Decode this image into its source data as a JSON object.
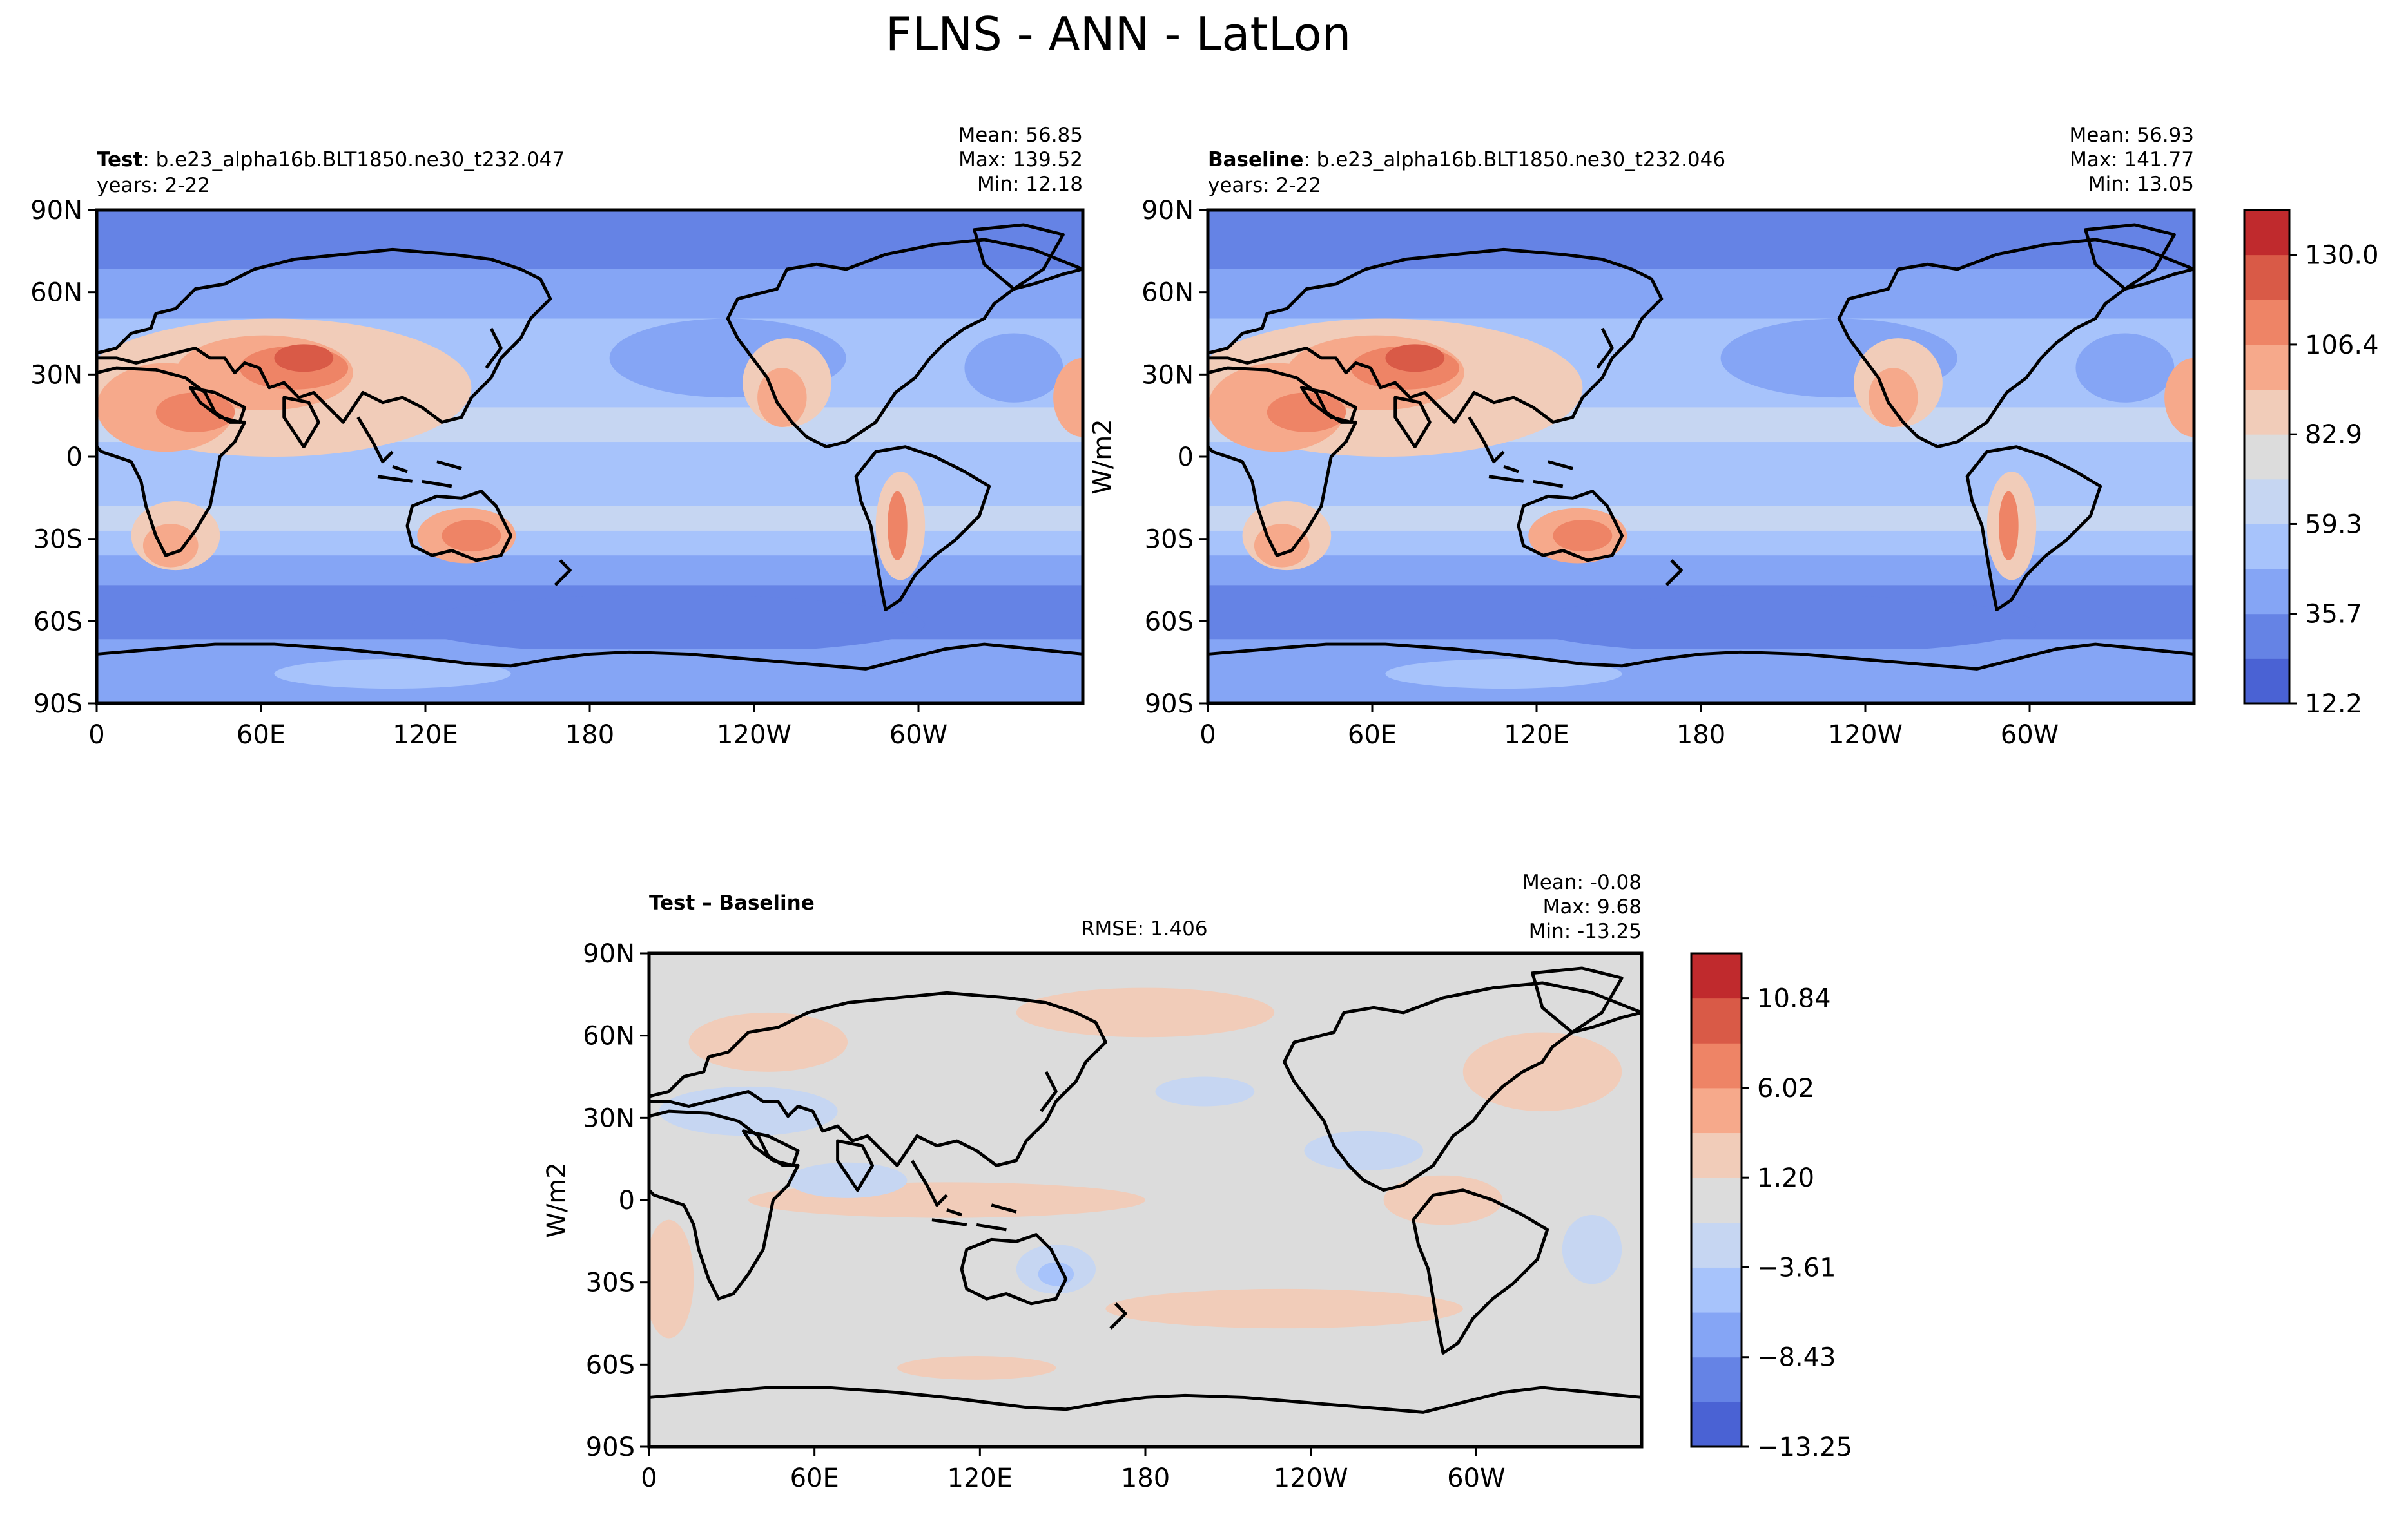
{
  "figure": {
    "title": "FLNS - ANN - LatLon"
  },
  "chart_data": [
    {
      "type": "heatmap",
      "name": "test",
      "title_bold": "Test",
      "title_rest": ": b.e23_alpha16b.BLT1850.ne30_t232.047",
      "subtitle": "years: 2-22",
      "stats": [
        "Mean: 56.85",
        "Max: 139.52",
        "Min: 12.18"
      ],
      "xticks": [
        "0",
        "60E",
        "120E",
        "180",
        "120W",
        "60W"
      ],
      "yticks": [
        "90N",
        "60N",
        "30N",
        "0",
        "30S",
        "60S",
        "90S"
      ],
      "xlim": [
        0,
        360
      ],
      "ylim": [
        -90,
        90
      ],
      "ylabel": "",
      "grid": false
    },
    {
      "type": "heatmap",
      "name": "baseline",
      "title_bold": "Baseline",
      "title_rest": ": b.e23_alpha16b.BLT1850.ne30_t232.046",
      "subtitle": "years: 2-22",
      "stats": [
        "Mean: 56.93",
        "Max: 141.77",
        "Min: 13.05"
      ],
      "xticks": [
        "0",
        "60E",
        "120E",
        "180",
        "120W",
        "60W"
      ],
      "yticks": [
        "90N",
        "60N",
        "30N",
        "0",
        "30S",
        "60S",
        "90S"
      ],
      "xlim": [
        0,
        360
      ],
      "ylim": [
        -90,
        90
      ],
      "ylabel": "W/m2",
      "grid": false,
      "colorbar": {
        "ticks": [
          "130.0",
          "106.4",
          "82.9",
          "59.3",
          "35.7",
          "12.2"
        ],
        "colors": [
          "#4a62d4",
          "#6583e5",
          "#85a5f5",
          "#a7c3fb",
          "#c6d6f2",
          "#dcdcdc",
          "#f1ccb9",
          "#f6a98b",
          "#ee8466",
          "#d95a47",
          "#c02a2d"
        ]
      }
    },
    {
      "type": "heatmap",
      "name": "difference",
      "title_bold": "Test – Baseline",
      "title_rest": "",
      "rmse": "RMSE: 1.406",
      "stats": [
        "Mean: -0.08",
        "Max:  9.68",
        "Min: -13.25"
      ],
      "xticks": [
        "0",
        "60E",
        "120E",
        "180",
        "120W",
        "60W"
      ],
      "yticks": [
        "90N",
        "60N",
        "30N",
        "0",
        "30S",
        "60S",
        "90S"
      ],
      "xlim": [
        0,
        360
      ],
      "ylim": [
        -90,
        90
      ],
      "ylabel": "W/m2",
      "grid": false,
      "colorbar": {
        "ticks": [
          "10.84",
          "6.02",
          "1.20",
          "−3.61",
          "−8.43",
          "−13.25"
        ],
        "colors": [
          "#4a62d4",
          "#6583e5",
          "#85a5f5",
          "#a7c3fb",
          "#c6d6f2",
          "#dcdcdc",
          "#f1ccb9",
          "#f6a98b",
          "#ee8466",
          "#d95a47",
          "#c02a2d"
        ]
      }
    }
  ]
}
